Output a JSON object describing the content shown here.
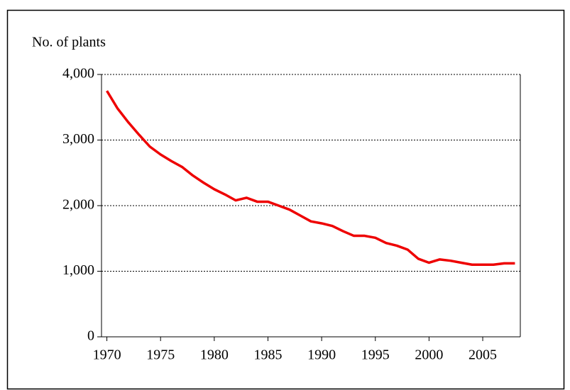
{
  "chart_data": {
    "type": "line",
    "y_label": "No. of plants",
    "x": [
      1970,
      1971,
      1972,
      1973,
      1974,
      1975,
      1976,
      1977,
      1978,
      1979,
      1980,
      1981,
      1982,
      1983,
      1984,
      1985,
      1986,
      1987,
      1988,
      1989,
      1990,
      1991,
      1992,
      1993,
      1994,
      1995,
      1996,
      1997,
      1998,
      1999,
      2000,
      2001,
      2002,
      2003,
      2004,
      2005,
      2006,
      2007,
      2008
    ],
    "series": [
      {
        "color": "#ee0000",
        "values": [
          3750,
          3480,
          3270,
          3080,
          2900,
          2780,
          2680,
          2590,
          2460,
          2350,
          2250,
          2170,
          2080,
          2120,
          2060,
          2060,
          2000,
          1940,
          1850,
          1760,
          1730,
          1690,
          1610,
          1540,
          1540,
          1510,
          1430,
          1390,
          1330,
          1190,
          1130,
          1180,
          1160,
          1130,
          1100,
          1100,
          1100,
          1120,
          1120
        ]
      }
    ],
    "xlim": [
      1969.5,
      2008.5
    ],
    "xticks": [
      1970,
      1975,
      1980,
      1985,
      1990,
      1995,
      2000,
      2005
    ],
    "ylim": [
      0,
      4000
    ],
    "yticks": [
      0,
      {
        "value": 1000,
        "label": "1,000"
      },
      {
        "value": 2000,
        "label": "2,000"
      },
      {
        "value": 3000,
        "label": "3,000"
      },
      {
        "value": 4000,
        "label": "4,000"
      }
    ],
    "grid": true
  }
}
